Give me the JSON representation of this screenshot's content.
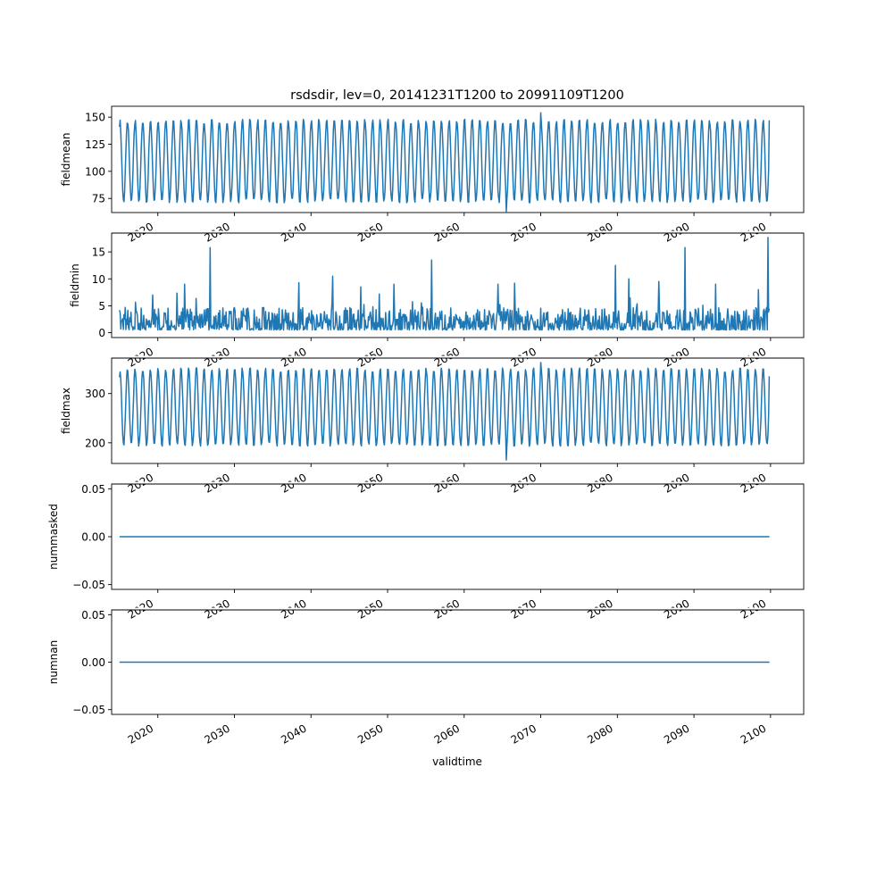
{
  "figure": {
    "title": "rsdsdir, lev=0, 20141231T1200 to 20991109T1200",
    "xlabel": "validtime",
    "xtick_labels": [
      "2020",
      "2030",
      "2040",
      "2050",
      "2060",
      "2070",
      "2080",
      "2090",
      "2100"
    ]
  },
  "colors": {
    "line": "#1f77b4",
    "axes": "#000000",
    "background": "#ffffff"
  },
  "chart_data": [
    {
      "type": "line",
      "ylabel": "fieldmean",
      "x_range": [
        "2014-12-31",
        "2099-11-09"
      ],
      "xlim": [
        "2013-12-20",
        "2104-05-01"
      ],
      "ylim": [
        62,
        160
      ],
      "yticks": [
        75,
        100,
        125,
        150
      ],
      "ytick_labels": [
        "75",
        "100",
        "125",
        "150"
      ],
      "pattern": "seasonal",
      "annual_low": 72,
      "annual_high": 147,
      "series_min": 63,
      "series_max": 154,
      "first_value": 141,
      "last_value": 147
    },
    {
      "type": "line",
      "ylabel": "fieldmin",
      "x_range": [
        "2014-12-31",
        "2099-11-09"
      ],
      "xlim": [
        "2013-12-20",
        "2104-05-01"
      ],
      "ylim": [
        -0.9,
        18.5
      ],
      "yticks": [
        0,
        5,
        10,
        15
      ],
      "ytick_labels": [
        "0",
        "5",
        "10",
        "15"
      ],
      "pattern": "spiky",
      "baseline": 0.5,
      "first_value": 4.2,
      "last_value": 4.5,
      "spikes": [
        {
          "date": "2026-11-01",
          "value": 15.8
        },
        {
          "date": "2042-11-01",
          "value": 10.5
        },
        {
          "date": "2055-10-01",
          "value": 13.5
        },
        {
          "date": "2079-10-01",
          "value": 12.5
        },
        {
          "date": "2088-11-01",
          "value": 15.8
        },
        {
          "date": "2099-09-01",
          "value": 17.7
        },
        {
          "date": "2023-07-01",
          "value": 9.0
        },
        {
          "date": "2038-06-01",
          "value": 9.3
        },
        {
          "date": "2046-07-01",
          "value": 8.5
        },
        {
          "date": "2050-11-01",
          "value": 9.0
        },
        {
          "date": "2064-06-01",
          "value": 9.0
        },
        {
          "date": "2066-08-01",
          "value": 9.2
        },
        {
          "date": "2081-07-01",
          "value": 10.0
        },
        {
          "date": "2085-06-01",
          "value": 9.5
        },
        {
          "date": "2092-11-01",
          "value": 9.0
        },
        {
          "date": "2098-06-01",
          "value": 8.0
        }
      ]
    },
    {
      "type": "line",
      "ylabel": "fieldmax",
      "x_range": [
        "2014-12-31",
        "2099-11-09"
      ],
      "xlim": [
        "2013-12-20",
        "2104-05-01"
      ],
      "ylim": [
        158,
        372
      ],
      "yticks": [
        200,
        300
      ],
      "ytick_labels": [
        "200",
        "300"
      ],
      "pattern": "seasonal",
      "annual_low": 195,
      "annual_high": 350,
      "series_min": 165,
      "series_max": 363,
      "first_value": 333,
      "last_value": 335
    },
    {
      "type": "line",
      "ylabel": "nummasked",
      "x_range": [
        "2014-12-31",
        "2099-11-09"
      ],
      "xlim": [
        "2013-12-20",
        "2104-05-01"
      ],
      "ylim": [
        -0.055,
        0.055
      ],
      "yticks": [
        -0.05,
        0.0,
        0.05
      ],
      "ytick_labels": [
        "−0.05",
        "0.00",
        "0.05"
      ],
      "pattern": "constant",
      "value": 0.0
    },
    {
      "type": "line",
      "ylabel": "numnan",
      "x_range": [
        "2014-12-31",
        "2099-11-09"
      ],
      "xlim": [
        "2013-12-20",
        "2104-05-01"
      ],
      "ylim": [
        -0.055,
        0.055
      ],
      "yticks": [
        -0.05,
        0.0,
        0.05
      ],
      "ytick_labels": [
        "−0.05",
        "0.00",
        "0.05"
      ],
      "pattern": "constant",
      "value": 0.0
    }
  ]
}
